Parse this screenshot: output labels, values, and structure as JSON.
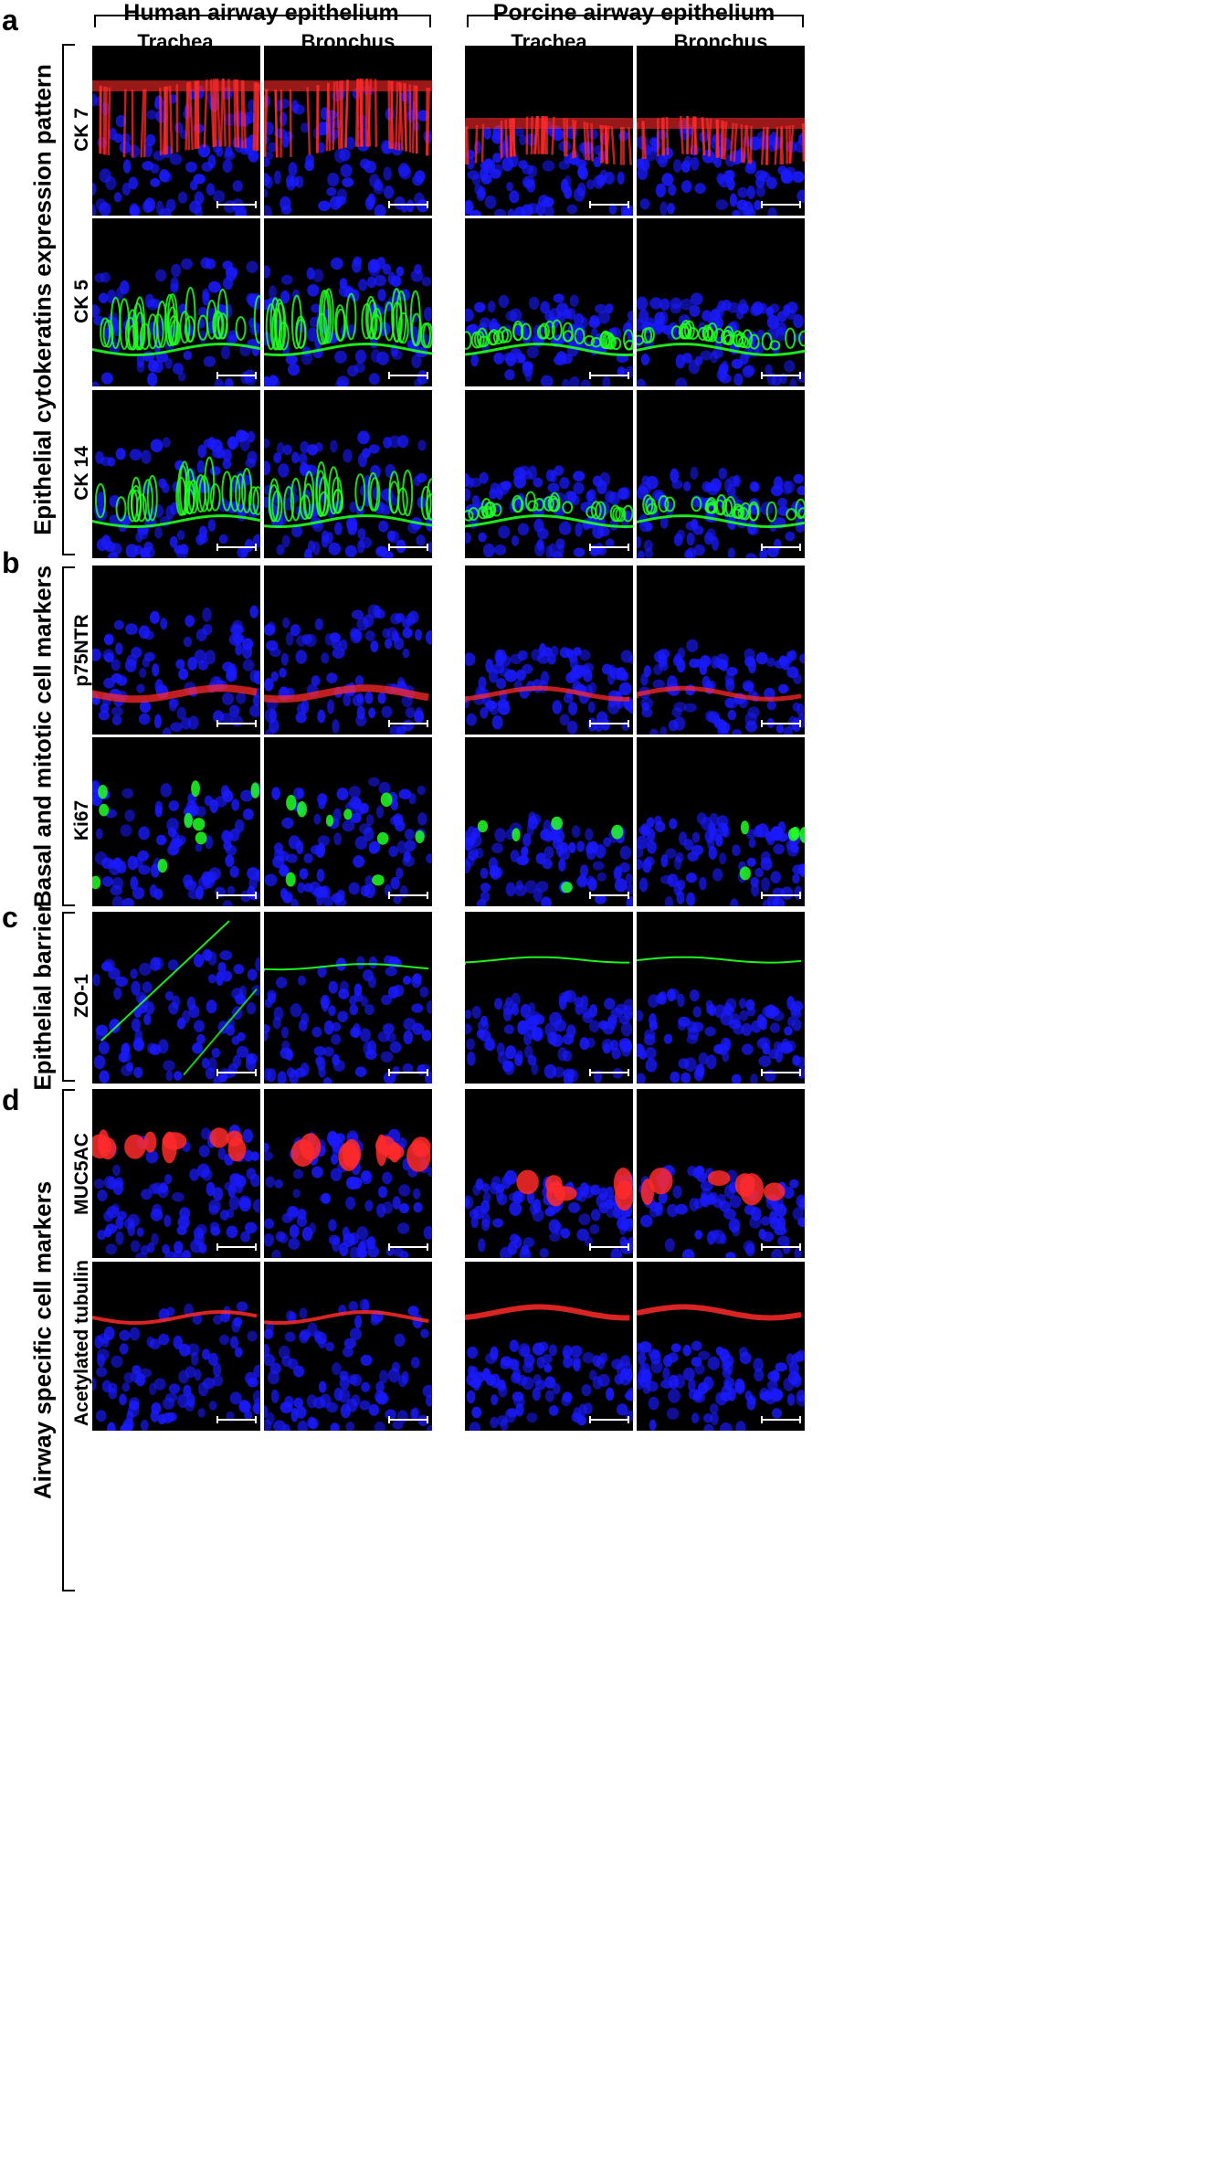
{
  "panels": {
    "a": "a",
    "b": "b",
    "c": "c",
    "d": "d"
  },
  "species": {
    "human": "Human airway epithelium",
    "porcine": "Porcine airway epithelium"
  },
  "sites": {
    "human_trachea": "Trachea",
    "human_bronchus": "Bronchus",
    "porcine_trachea": "Trachea",
    "porcine_bronchus": "Bronchus"
  },
  "groups": {
    "a": "Epithelial cytokeratins expression pattern",
    "b": "Basal and mitotic cell markers",
    "c": "Epithelial barrier",
    "d": "Airway specific cell markers"
  },
  "markers": [
    "CK 7",
    "CK 5",
    "CK 14",
    "p75NTR",
    "Ki67",
    "ZO-1",
    "MUC5AC",
    "Acetylated tubulin"
  ],
  "stain_colors": {
    "red": "#ff2a2a",
    "green": "#22ff22",
    "blue": "#1a1aff",
    "background": "#000000"
  },
  "images": [
    {
      "row": 0,
      "stain": "red",
      "pattern": "columnar"
    },
    {
      "row": 1,
      "stain": "green",
      "pattern": "basal-thick"
    },
    {
      "row": 2,
      "stain": "green",
      "pattern": "basal-thin"
    },
    {
      "row": 3,
      "stain": "red",
      "pattern": "basal-line"
    },
    {
      "row": 4,
      "stain": "green",
      "pattern": "spots"
    },
    {
      "row": 5,
      "stain": "green",
      "pattern": "apical-line"
    },
    {
      "row": 6,
      "stain": "red",
      "pattern": "apical-blobs"
    },
    {
      "row": 7,
      "stain": "red",
      "pattern": "apical-thin"
    }
  ]
}
